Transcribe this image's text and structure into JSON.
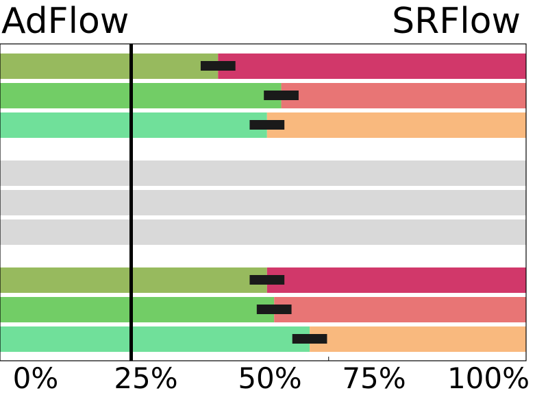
{
  "chart_data": {
    "type": "bar",
    "orientation": "horizontal-stacked",
    "title_left": "AdFlow",
    "title_right": "SRFlow",
    "x_ticks": [
      "0%",
      "25%",
      "50%",
      "75%",
      "100%"
    ],
    "xlim": [
      0,
      100
    ],
    "reference_line": 50,
    "rows": [
      {
        "value": 61.0,
        "error": 2.2,
        "color_left": "#97ba5e",
        "color_right": "#d1386a"
      },
      {
        "value": 69.0,
        "error": 2.2,
        "color_left": "#72cd66",
        "color_right": "#e87575"
      },
      {
        "value": 67.2,
        "error": 2.2,
        "color_left": "#70e09a",
        "color_right": "#f9b97e"
      },
      {
        "value": null,
        "color_left": "#d9d9d9",
        "color_right": "#d9d9d9"
      },
      {
        "value": null,
        "color_left": "#d9d9d9",
        "color_right": "#d9d9d9"
      },
      {
        "value": null,
        "color_left": "#d9d9d9",
        "color_right": "#d9d9d9"
      },
      {
        "value": 67.2,
        "error": 2.2,
        "color_left": "#97ba5e",
        "color_right": "#d1386a"
      },
      {
        "value": 68.1,
        "error": 2.2,
        "color_left": "#72cd66",
        "color_right": "#e87575"
      },
      {
        "value": 72.6,
        "error": 2.2,
        "color_left": "#70e09a",
        "color_right": "#f9b97e"
      }
    ]
  }
}
